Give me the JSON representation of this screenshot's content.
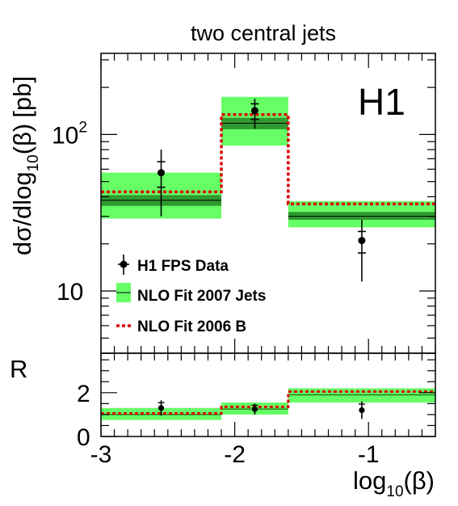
{
  "chart_data": [
    {
      "type": "step",
      "title": "two central jets",
      "experiment_label": "H1",
      "ylabel": {
        "base": "dσ/dlog",
        "sub": "10",
        "mid": "(β)",
        "unit": "[pb]"
      },
      "y_scale": "log",
      "ylim": [
        4,
        330
      ],
      "yticks": [
        {
          "value": 10,
          "label": "10",
          "sup": ""
        },
        {
          "value": 100,
          "label": "10",
          "sup": "2"
        }
      ],
      "x_bins": [
        [
          -3.0,
          -2.1
        ],
        [
          -2.1,
          -1.6
        ],
        [
          -1.6,
          -0.5
        ]
      ],
      "series": [
        {
          "name": "H1 FPS Data",
          "x": [
            -2.55,
            -1.85,
            -1.05
          ],
          "y": [
            57,
            142,
            21
          ],
          "err_low": [
            27,
            33,
            9.5
          ],
          "err_high": [
            23,
            27,
            7.5
          ],
          "inner_err_low": [
            11,
            17,
            3.5
          ],
          "inner_err_high": [
            10,
            15,
            3
          ]
        },
        {
          "name": "NLO Fit 2007 Jets",
          "central": [
            38,
            118,
            30
          ],
          "band_low": [
            29,
            85,
            25.5
          ],
          "band_high": [
            57,
            174,
            37.5
          ],
          "inner_low": [
            35,
            108,
            28.5
          ],
          "inner_high": [
            41,
            128,
            32
          ],
          "color": "#66ff66"
        },
        {
          "name": "NLO Fit 2006 B",
          "values": [
            43,
            134,
            36
          ],
          "color": "#dd0000"
        }
      ]
    },
    {
      "type": "step",
      "ylabel": "R",
      "xlabel": {
        "base": "log",
        "sub": "10",
        "mid": "(β)"
      },
      "xlim": [
        -3,
        -0.5
      ],
      "ylim": [
        0,
        3.8
      ],
      "yticks": [
        {
          "value": 0,
          "label": "0"
        },
        {
          "value": 2,
          "label": "2"
        }
      ],
      "xticks": [
        {
          "value": -3,
          "label": "-3"
        },
        {
          "value": -2,
          "label": "-2"
        },
        {
          "value": -1,
          "label": "-1"
        }
      ],
      "series": [
        {
          "name": "H1 FPS Data",
          "x": [
            -2.55,
            -1.85,
            -1.05
          ],
          "y": [
            1.3,
            1.25,
            1.2
          ],
          "err": [
            0.35,
            0.25,
            0.4
          ]
        },
        {
          "name": "NLO Fit 2007 Jets",
          "central": [
            1.0,
            1.25,
            1.9
          ],
          "band_low": [
            0.75,
            1.0,
            1.55
          ],
          "band_high": [
            1.3,
            1.55,
            2.2
          ]
        },
        {
          "name": "NLO Fit 2006 B",
          "values": [
            1.05,
            1.35,
            2.05
          ]
        }
      ]
    }
  ]
}
